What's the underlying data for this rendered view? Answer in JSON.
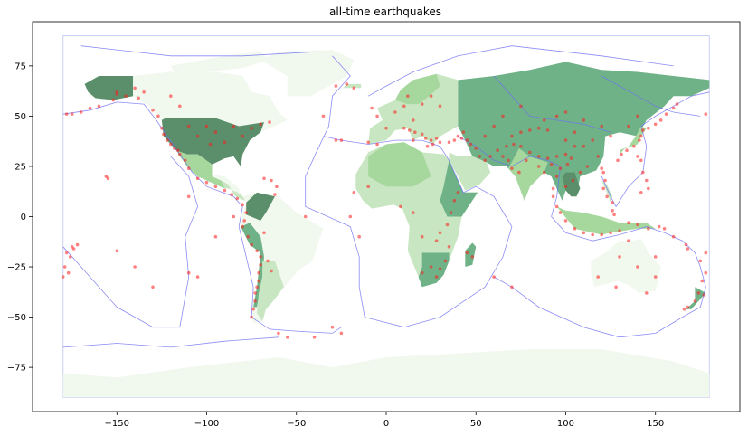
{
  "chart_data": {
    "type": "scatter",
    "title": "all-time earthquakes",
    "xlabel": "",
    "ylabel": "",
    "xlim": [
      -197,
      197
    ],
    "ylim": [
      -97,
      97
    ],
    "xticks": [
      -150,
      -100,
      -50,
      0,
      50,
      100,
      150
    ],
    "yticks": [
      -75,
      -50,
      -25,
      0,
      25,
      50,
      75
    ],
    "grid": false,
    "colors": {
      "quake": "#ff1a1a",
      "plates": "#6f6ff2",
      "land_very_light": "#f1f8ee",
      "land_light": "#c7e6c1",
      "land_mid": "#a6d89e",
      "land_dark": "#6fb288",
      "land_darkest": "#5b8f6b"
    },
    "earthquakes": [
      {
        "x": -150,
        "y": 61
      },
      {
        "x": -152,
        "y": 58
      },
      {
        "x": -160,
        "y": 55
      },
      {
        "x": -165,
        "y": 54
      },
      {
        "x": -170,
        "y": 52
      },
      {
        "x": -175,
        "y": 51
      },
      {
        "x": -178,
        "y": 51
      },
      {
        "x": 178,
        "y": 51
      },
      {
        "x": -145,
        "y": 60
      },
      {
        "x": -138,
        "y": 59
      },
      {
        "x": -130,
        "y": 53
      },
      {
        "x": -127,
        "y": 50
      },
      {
        "x": -125,
        "y": 44
      },
      {
        "x": -124,
        "y": 41
      },
      {
        "x": -122,
        "y": 38
      },
      {
        "x": -120,
        "y": 36
      },
      {
        "x": -118,
        "y": 34
      },
      {
        "x": -116,
        "y": 33
      },
      {
        "x": -115,
        "y": 31
      },
      {
        "x": -112,
        "y": 28
      },
      {
        "x": -110,
        "y": 24
      },
      {
        "x": -105,
        "y": 19
      },
      {
        "x": -100,
        "y": 17
      },
      {
        "x": -95,
        "y": 15
      },
      {
        "x": -90,
        "y": 13
      },
      {
        "x": -86,
        "y": 11
      },
      {
        "x": -83,
        "y": 9
      },
      {
        "x": -80,
        "y": 6
      },
      {
        "x": -78,
        "y": 2
      },
      {
        "x": -79,
        "y": -2
      },
      {
        "x": -80,
        "y": -5
      },
      {
        "x": -77,
        "y": -10
      },
      {
        "x": -75,
        "y": -14
      },
      {
        "x": -72,
        "y": -17
      },
      {
        "x": -70,
        "y": -20
      },
      {
        "x": -70,
        "y": -24
      },
      {
        "x": -71,
        "y": -28
      },
      {
        "x": -71,
        "y": -32
      },
      {
        "x": -72,
        "y": -35
      },
      {
        "x": -73,
        "y": -38
      },
      {
        "x": -73,
        "y": -42
      },
      {
        "x": -74,
        "y": -46
      },
      {
        "x": -75,
        "y": -50
      },
      {
        "x": -68,
        "y": -8
      },
      {
        "x": -66,
        "y": -22
      },
      {
        "x": -64,
        "y": -27
      },
      {
        "x": -68,
        "y": 19
      },
      {
        "x": -64,
        "y": 18
      },
      {
        "x": -61,
        "y": 15
      },
      {
        "x": -62,
        "y": 11
      },
      {
        "x": -155,
        "y": 19
      },
      {
        "x": -156,
        "y": 20
      },
      {
        "x": -178,
        "y": -18
      },
      {
        "x": -176,
        "y": -20
      },
      {
        "x": -174,
        "y": -16
      },
      {
        "x": 178,
        "y": -18
      },
      {
        "x": 175,
        "y": -22
      },
      {
        "x": 178,
        "y": -28
      },
      {
        "x": 176,
        "y": -32
      },
      {
        "x": 174,
        "y": -38
      },
      {
        "x": 177,
        "y": -39
      },
      {
        "x": 172,
        "y": -42
      },
      {
        "x": 168,
        "y": -45
      },
      {
        "x": 166,
        "y": -46
      },
      {
        "x": 168,
        "y": -16
      },
      {
        "x": 167,
        "y": -14
      },
      {
        "x": 160,
        "y": -10
      },
      {
        "x": 155,
        "y": -6
      },
      {
        "x": 152,
        "y": -5
      },
      {
        "x": 146,
        "y": -6
      },
      {
        "x": 140,
        "y": -4
      },
      {
        "x": 135,
        "y": -3
      },
      {
        "x": 130,
        "y": -7
      },
      {
        "x": 125,
        "y": -8
      },
      {
        "x": 120,
        "y": -9
      },
      {
        "x": 115,
        "y": -9
      },
      {
        "x": 110,
        "y": -8
      },
      {
        "x": 105,
        "y": -6
      },
      {
        "x": 100,
        "y": -2
      },
      {
        "x": 97,
        "y": 2
      },
      {
        "x": 95,
        "y": 5
      },
      {
        "x": 93,
        "y": 10
      },
      {
        "x": 93,
        "y": 14
      },
      {
        "x": 95,
        "y": 20
      },
      {
        "x": 97,
        "y": 24
      },
      {
        "x": 101,
        "y": 26
      },
      {
        "x": 103,
        "y": 29
      },
      {
        "x": 100,
        "y": 31
      },
      {
        "x": 95,
        "y": 30
      },
      {
        "x": 90,
        "y": 29
      },
      {
        "x": 85,
        "y": 30
      },
      {
        "x": 80,
        "y": 32
      },
      {
        "x": 75,
        "y": 35
      },
      {
        "x": 71,
        "y": 36
      },
      {
        "x": 67,
        "y": 35
      },
      {
        "x": 62,
        "y": 33
      },
      {
        "x": 58,
        "y": 30
      },
      {
        "x": 55,
        "y": 28
      },
      {
        "x": 52,
        "y": 30
      },
      {
        "x": 50,
        "y": 34
      },
      {
        "x": 47,
        "y": 36
      },
      {
        "x": 45,
        "y": 38
      },
      {
        "x": 42,
        "y": 39
      },
      {
        "x": 38,
        "y": 38
      },
      {
        "x": 35,
        "y": 37
      },
      {
        "x": 30,
        "y": 37
      },
      {
        "x": 28,
        "y": 39
      },
      {
        "x": 25,
        "y": 38
      },
      {
        "x": 22,
        "y": 39
      },
      {
        "x": 20,
        "y": 41
      },
      {
        "x": 16,
        "y": 42
      },
      {
        "x": 13,
        "y": 43
      },
      {
        "x": 10,
        "y": 44
      },
      {
        "x": 15,
        "y": 38
      },
      {
        "x": 23,
        "y": 35
      },
      {
        "x": 26,
        "y": 36
      },
      {
        "x": 40,
        "y": 40
      },
      {
        "x": 43,
        "y": 42
      },
      {
        "x": 70,
        "y": 40
      },
      {
        "x": 75,
        "y": 42
      },
      {
        "x": 80,
        "y": 43
      },
      {
        "x": 85,
        "y": 44
      },
      {
        "x": 90,
        "y": 43
      },
      {
        "x": 100,
        "y": 38
      },
      {
        "x": 105,
        "y": 35
      },
      {
        "x": 110,
        "y": 35
      },
      {
        "x": 115,
        "y": 38
      },
      {
        "x": 120,
        "y": 24
      },
      {
        "x": 121,
        "y": 22
      },
      {
        "x": 122,
        "y": 18
      },
      {
        "x": 121,
        "y": 14
      },
      {
        "x": 123,
        "y": 10
      },
      {
        "x": 126,
        "y": 7
      },
      {
        "x": 126,
        "y": 3
      },
      {
        "x": 127,
        "y": 1
      },
      {
        "x": 129,
        "y": 28
      },
      {
        "x": 131,
        "y": 31
      },
      {
        "x": 134,
        "y": 33
      },
      {
        "x": 138,
        "y": 35
      },
      {
        "x": 141,
        "y": 38
      },
      {
        "x": 142,
        "y": 40
      },
      {
        "x": 143,
        "y": 43
      },
      {
        "x": 146,
        "y": 44
      },
      {
        "x": 150,
        "y": 46
      },
      {
        "x": 153,
        "y": 48
      },
      {
        "x": 156,
        "y": 51
      },
      {
        "x": 160,
        "y": 54
      },
      {
        "x": 162,
        "y": 56
      },
      {
        "x": 142,
        "y": 28
      },
      {
        "x": 143,
        "y": 22
      },
      {
        "x": 145,
        "y": 18
      },
      {
        "x": 146,
        "y": 14
      },
      {
        "x": 142,
        "y": 12
      },
      {
        "x": 140,
        "y": 30
      },
      {
        "x": 60,
        "y": -30
      },
      {
        "x": 70,
        "y": -35
      },
      {
        "x": 40,
        "y": 12
      },
      {
        "x": 38,
        "y": 8
      },
      {
        "x": 36,
        "y": 2
      },
      {
        "x": 34,
        "y": -4
      },
      {
        "x": 30,
        "y": -8
      },
      {
        "x": 28,
        "y": -12
      },
      {
        "x": 35,
        "y": -15
      },
      {
        "x": 33,
        "y": -22
      },
      {
        "x": 15,
        "y": 48
      },
      {
        "x": 0,
        "y": 44
      },
      {
        "x": -5,
        "y": 36
      },
      {
        "x": -10,
        "y": 37
      },
      {
        "x": -25,
        "y": 38
      },
      {
        "x": -28,
        "y": 38
      },
      {
        "x": -35,
        "y": 50
      },
      {
        "x": -28,
        "y": 65
      },
      {
        "x": -18,
        "y": 64
      },
      {
        "x": -22,
        "y": 66
      },
      {
        "x": -45,
        "y": 0
      },
      {
        "x": -15,
        "y": -10
      },
      {
        "x": -30,
        "y": -55
      },
      {
        "x": -25,
        "y": -58
      },
      {
        "x": 120,
        "y": 45
      },
      {
        "x": 110,
        "y": 48
      },
      {
        "x": 100,
        "y": 52
      },
      {
        "x": 95,
        "y": 50
      },
      {
        "x": 88,
        "y": 48
      },
      {
        "x": 105,
        "y": 42
      },
      {
        "x": 60,
        "y": 45
      },
      {
        "x": 55,
        "y": 40
      },
      {
        "x": 65,
        "y": 50
      },
      {
        "x": 75,
        "y": 55
      },
      {
        "x": 140,
        "y": 50
      },
      {
        "x": 135,
        "y": 45
      },
      {
        "x": 125,
        "y": 40
      },
      {
        "x": 118,
        "y": 30
      },
      {
        "x": 112,
        "y": 25
      },
      {
        "x": 108,
        "y": 22
      },
      {
        "x": 104,
        "y": 18
      },
      {
        "x": 100,
        "y": 15
      },
      {
        "x": 88,
        "y": 22
      },
      {
        "x": 85,
        "y": 25
      },
      {
        "x": 92,
        "y": 26
      },
      {
        "x": 78,
        "y": 28
      },
      {
        "x": 74,
        "y": 22
      },
      {
        "x": 70,
        "y": 24
      },
      {
        "x": 68,
        "y": 28
      },
      {
        "x": 65,
        "y": 30
      },
      {
        "x": 150,
        "y": -30
      },
      {
        "x": 145,
        "y": -38
      },
      {
        "x": 130,
        "y": -20
      },
      {
        "x": 118,
        "y": -30
      },
      {
        "x": 140,
        "y": -25
      },
      {
        "x": 128,
        "y": -35
      },
      {
        "x": 135,
        "y": -12
      },
      {
        "x": 150,
        "y": -20
      },
      {
        "x": -60,
        "y": -58
      },
      {
        "x": -55,
        "y": -60
      },
      {
        "x": -40,
        "y": -60
      },
      {
        "x": -180,
        "y": -30
      },
      {
        "x": -179,
        "y": -25
      },
      {
        "x": -177,
        "y": -28
      },
      {
        "x": -175,
        "y": -15
      },
      {
        "x": -172,
        "y": -14
      },
      {
        "x": -150,
        "y": -17
      },
      {
        "x": -140,
        "y": -25
      },
      {
        "x": -130,
        "y": -35
      },
      {
        "x": -110,
        "y": -28
      },
      {
        "x": -105,
        "y": -30
      },
      {
        "x": -95,
        "y": -10
      },
      {
        "x": -85,
        "y": 0
      },
      {
        "x": -110,
        "y": 10
      },
      {
        "x": -150,
        "y": 62
      },
      {
        "x": -140,
        "y": 64
      },
      {
        "x": -135,
        "y": 62
      },
      {
        "x": -120,
        "y": 60
      },
      {
        "x": -115,
        "y": 55
      },
      {
        "x": -110,
        "y": 45
      },
      {
        "x": -105,
        "y": 40
      },
      {
        "x": -98,
        "y": 36
      },
      {
        "x": -90,
        "y": 37
      },
      {
        "x": -80,
        "y": 40
      },
      {
        "x": -75,
        "y": 44
      },
      {
        "x": -70,
        "y": 46
      },
      {
        "x": -65,
        "y": 47
      },
      {
        "x": -100,
        "y": 45
      },
      {
        "x": -95,
        "y": 42
      },
      {
        "x": -85,
        "y": 45
      },
      {
        "x": 5,
        "y": 52
      },
      {
        "x": 10,
        "y": 55
      },
      {
        "x": 20,
        "y": 56
      },
      {
        "x": 30,
        "y": 55
      },
      {
        "x": -5,
        "y": 50
      },
      {
        "x": -8,
        "y": 54
      },
      {
        "x": 12,
        "y": 60
      },
      {
        "x": 25,
        "y": 60
      },
      {
        "x": -20,
        "y": 0
      },
      {
        "x": -18,
        "y": 12
      },
      {
        "x": -10,
        "y": 15
      },
      {
        "x": 8,
        "y": 5
      },
      {
        "x": 15,
        "y": 2
      },
      {
        "x": 20,
        "y": -10
      },
      {
        "x": 25,
        "y": -25
      },
      {
        "x": 20,
        "y": -28
      },
      {
        "x": 28,
        "y": -30
      },
      {
        "x": 30,
        "y": -26
      },
      {
        "x": 45,
        "y": -18
      },
      {
        "x": 48,
        "y": -20
      }
    ]
  }
}
